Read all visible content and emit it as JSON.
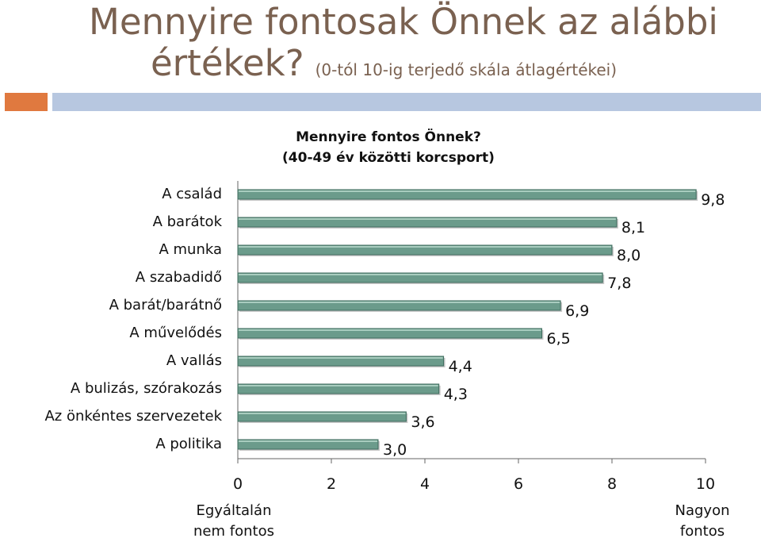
{
  "slide": {
    "title_line1": "Mennyire fontosak Önnek az alábbi",
    "title_line2": "értékek?",
    "title_sub": "(0-tól 10-ig terjedő skála átlagértékei)"
  },
  "colors": {
    "bar_fill": "#6b9b8b",
    "bar_edge": "#3f6b5e",
    "band_orange": "#e0793f",
    "band_blue": "#b7c7e0",
    "title": "#7a6150"
  },
  "chart_data": {
    "type": "bar",
    "orientation": "horizontal",
    "title": "Mennyire fontos Önnek?",
    "subtitle": "(40-49 év közötti korcsport)",
    "categories": [
      "A család",
      "A barátok",
      "A munka",
      "A szabadidő",
      "A barát/barátnő",
      "A művelődés",
      "A vallás",
      "A bulizás, szórakozás",
      "Az önkéntes szervezetek",
      "A politika"
    ],
    "values": [
      9.8,
      8.1,
      8.0,
      7.8,
      6.9,
      6.5,
      4.4,
      4.3,
      3.6,
      3.0
    ],
    "value_labels": [
      "9,8",
      "8,1",
      "8,0",
      "7,8",
      "6,9",
      "6,5",
      "4,4",
      "4,3",
      "3,6",
      "3,0"
    ],
    "xlim": [
      0,
      10
    ],
    "xticks": [
      "0",
      "2",
      "4",
      "6",
      "8",
      "10"
    ],
    "x_axis_left_label": "Egyáltalán nem fontos",
    "x_axis_right_label": "Nagyon fontos",
    "grid": false
  }
}
